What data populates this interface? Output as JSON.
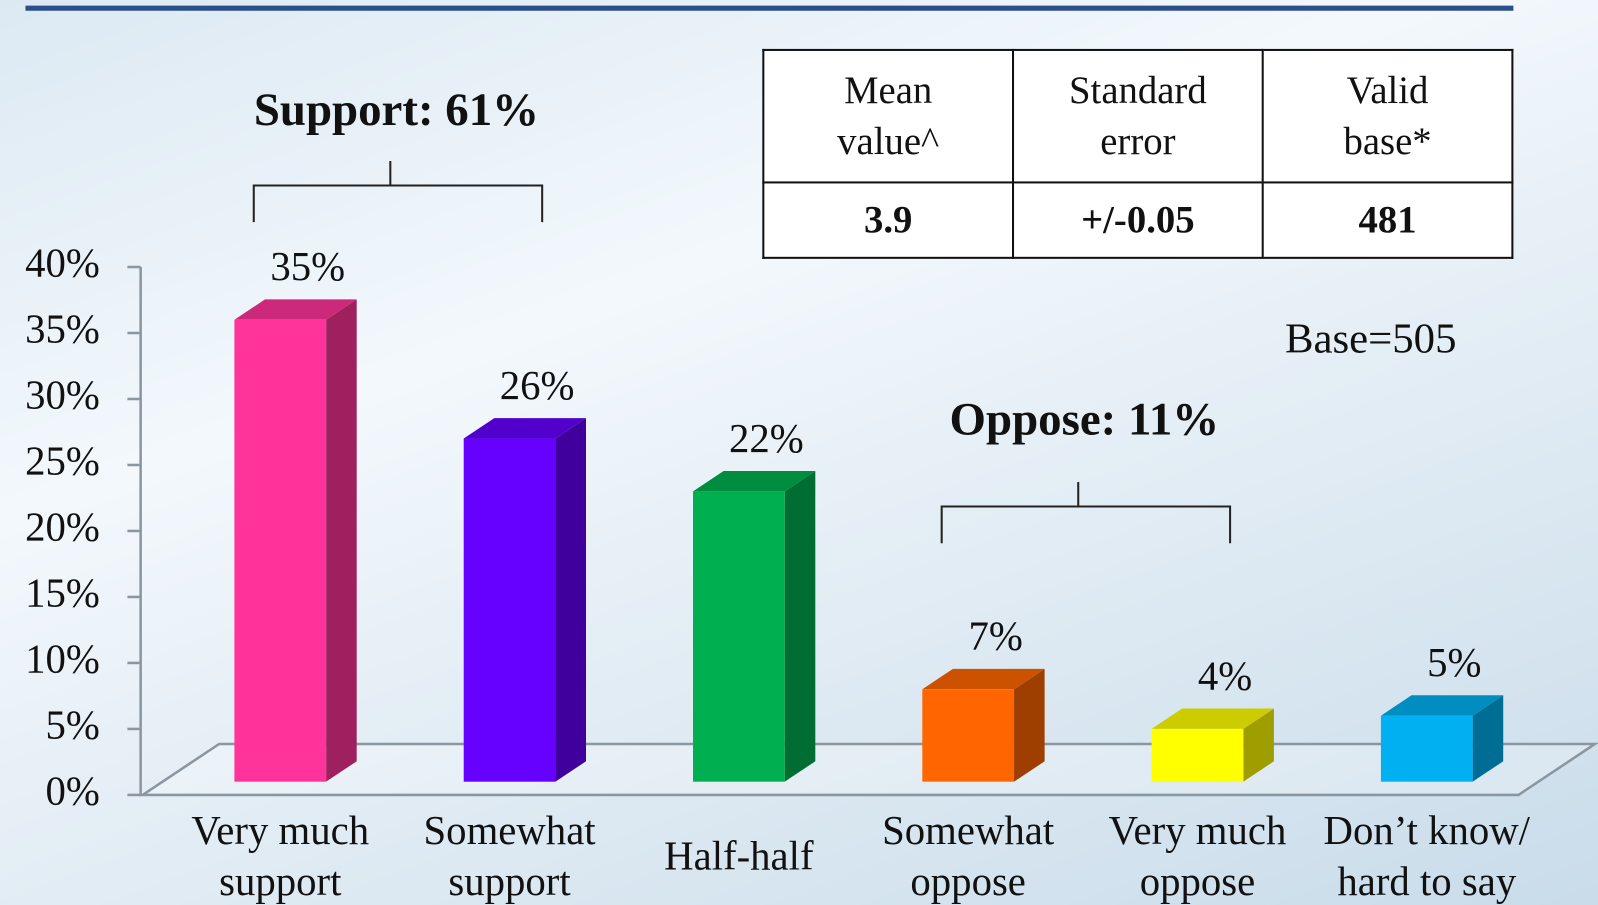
{
  "chart_data": {
    "type": "bar3d",
    "categories": [
      "Very much support",
      "Somewhat support",
      "Half-half",
      "Somewhat oppose",
      "Very much oppose",
      "Don’t know/ hard to say"
    ],
    "values": [
      35,
      26,
      22,
      7,
      4,
      5
    ],
    "value_labels": [
      "35%",
      "26%",
      "22%",
      "7%",
      "4%",
      "5%"
    ],
    "colors": [
      "#ff3399",
      "#6600ff",
      "#00b050",
      "#ff6600",
      "#ffff00",
      "#00b0f0"
    ],
    "ylim": [
      0,
      40
    ],
    "yticks": [
      {
        "value": 0,
        "label": "0%"
      },
      {
        "value": 5,
        "label": "5%"
      },
      {
        "value": 10,
        "label": "10%"
      },
      {
        "value": 15,
        "label": "15%"
      },
      {
        "value": 20,
        "label": "20%"
      },
      {
        "value": 25,
        "label": "25%"
      },
      {
        "value": 30,
        "label": "30%"
      },
      {
        "value": 35,
        "label": "35%"
      },
      {
        "value": 40,
        "label": "40%"
      }
    ],
    "annotations": [
      "Support: 61%",
      "Oppose: 11%",
      "Base=505"
    ]
  },
  "table": {
    "header": [
      "Mean value^",
      "Standard error",
      "Valid base*"
    ],
    "rows": [
      [
        "3.9",
        "+/-0.05",
        "481"
      ]
    ]
  }
}
